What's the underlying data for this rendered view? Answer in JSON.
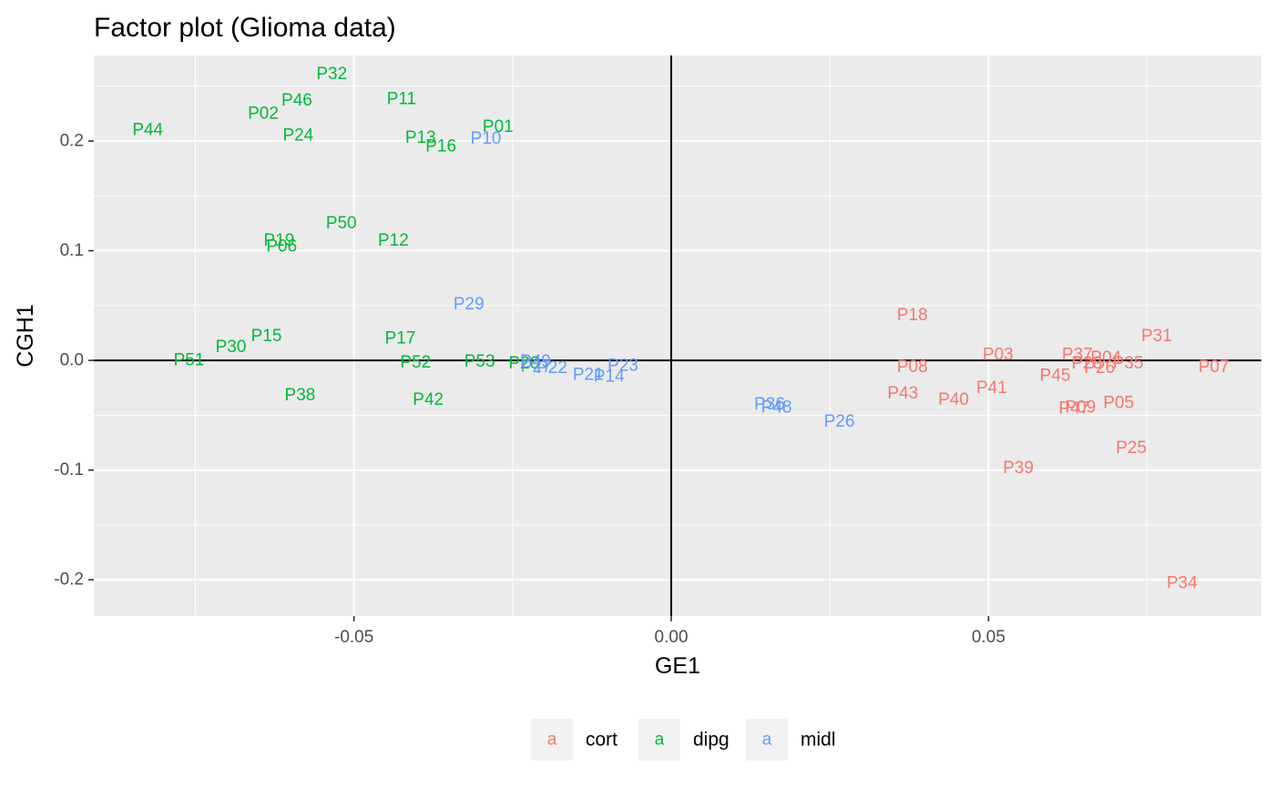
{
  "chart_data": {
    "type": "scatter",
    "title": "Factor plot (Glioma data)",
    "xlabel": "GE1",
    "ylabel": "CGH1",
    "xlim": [
      -0.091,
      0.093
    ],
    "ylim": [
      -0.233,
      0.278
    ],
    "x_ticks": [
      -0.05,
      0.0,
      0.05
    ],
    "x_tick_labels": [
      "-0.05",
      "0.00",
      "0.05"
    ],
    "y_ticks": [
      -0.2,
      -0.1,
      0.0,
      0.1,
      0.2
    ],
    "y_tick_labels": [
      "-0.2",
      "-0.1",
      "0.0",
      "0.1",
      "0.2"
    ],
    "reference_lines": {
      "x": 0,
      "y": 0
    },
    "grid": true,
    "legend_position": "bottom",
    "legend_key_glyph": "a",
    "series": [
      {
        "name": "cort",
        "color": "#F8766D",
        "points": [
          {
            "label": "P18",
            "x": 0.038,
            "y": 0.041
          },
          {
            "label": "P31",
            "x": 0.0765,
            "y": 0.022
          },
          {
            "label": "P03",
            "x": 0.0515,
            "y": 0.005
          },
          {
            "label": "P37",
            "x": 0.064,
            "y": 0.005
          },
          {
            "label": "P04",
            "x": 0.0685,
            "y": 0.002
          },
          {
            "label": "P08",
            "x": 0.038,
            "y": -0.006
          },
          {
            "label": "P28",
            "x": 0.0655,
            "y": -0.003
          },
          {
            "label": "P26",
            "x": 0.0675,
            "y": -0.007
          },
          {
            "label": "P35",
            "x": 0.072,
            "y": -0.003
          },
          {
            "label": "P07",
            "x": 0.0855,
            "y": -0.006
          },
          {
            "label": "P45",
            "x": 0.0605,
            "y": -0.014
          },
          {
            "label": "P41",
            "x": 0.0505,
            "y": -0.025
          },
          {
            "label": "P43",
            "x": 0.0365,
            "y": -0.03
          },
          {
            "label": "P40",
            "x": 0.0445,
            "y": -0.036
          },
          {
            "label": "P05",
            "x": 0.0705,
            "y": -0.039
          },
          {
            "label": "P47",
            "x": 0.0635,
            "y": -0.044
          },
          {
            "label": "P09",
            "x": 0.0645,
            "y": -0.043
          },
          {
            "label": "P25",
            "x": 0.0725,
            "y": -0.08
          },
          {
            "label": "P39",
            "x": 0.0547,
            "y": -0.098
          },
          {
            "label": "P34",
            "x": 0.0805,
            "y": -0.203
          }
        ]
      },
      {
        "name": "dipg",
        "color": "#00BA38",
        "points": [
          {
            "label": "P32",
            "x": -0.0535,
            "y": 0.261
          },
          {
            "label": "P46",
            "x": -0.059,
            "y": 0.237
          },
          {
            "label": "P11",
            "x": -0.0425,
            "y": 0.238
          },
          {
            "label": "P02",
            "x": -0.0643,
            "y": 0.225
          },
          {
            "label": "P44",
            "x": -0.0825,
            "y": 0.21
          },
          {
            "label": "P24",
            "x": -0.0588,
            "y": 0.205
          },
          {
            "label": "P01",
            "x": -0.0273,
            "y": 0.213
          },
          {
            "label": "P13",
            "x": -0.0395,
            "y": 0.203
          },
          {
            "label": "P16",
            "x": -0.0363,
            "y": 0.195
          },
          {
            "label": "P50",
            "x": -0.052,
            "y": 0.125
          },
          {
            "label": "P12",
            "x": -0.0438,
            "y": 0.109
          },
          {
            "label": "P19",
            "x": -0.0618,
            "y": 0.109
          },
          {
            "label": "P06",
            "x": -0.0614,
            "y": 0.104
          },
          {
            "label": "P15",
            "x": -0.0638,
            "y": 0.022
          },
          {
            "label": "P17",
            "x": -0.0427,
            "y": 0.02
          },
          {
            "label": "P30",
            "x": -0.0694,
            "y": 0.012
          },
          {
            "label": "P51",
            "x": -0.076,
            "y": 0.0
          },
          {
            "label": "P52",
            "x": -0.0403,
            "y": -0.002
          },
          {
            "label": "P53",
            "x": -0.0302,
            "y": -0.001
          },
          {
            "label": "P20",
            "x": -0.0232,
            "y": -0.003
          },
          {
            "label": "P38",
            "x": -0.0585,
            "y": -0.032
          },
          {
            "label": "P42",
            "x": -0.0383,
            "y": -0.036
          }
        ]
      },
      {
        "name": "midl",
        "color": "#619CFF",
        "points": [
          {
            "label": "P10",
            "x": -0.0292,
            "y": 0.202
          },
          {
            "label": "P29",
            "x": -0.0319,
            "y": 0.051
          },
          {
            "label": "P49",
            "x": -0.0214,
            "y": -0.001
          },
          {
            "label": "P27",
            "x": -0.0213,
            "y": -0.006
          },
          {
            "label": "P22",
            "x": -0.0188,
            "y": -0.007
          },
          {
            "label": "P21",
            "x": -0.0131,
            "y": -0.013
          },
          {
            "label": "P14",
            "x": -0.0098,
            "y": -0.015
          },
          {
            "label": "P23",
            "x": -0.0076,
            "y": -0.005
          },
          {
            "label": "P36",
            "x": 0.0155,
            "y": -0.04
          },
          {
            "label": "P48",
            "x": 0.0166,
            "y": -0.043
          },
          {
            "label": "P26",
            "x": 0.0265,
            "y": -0.056
          }
        ]
      }
    ]
  }
}
